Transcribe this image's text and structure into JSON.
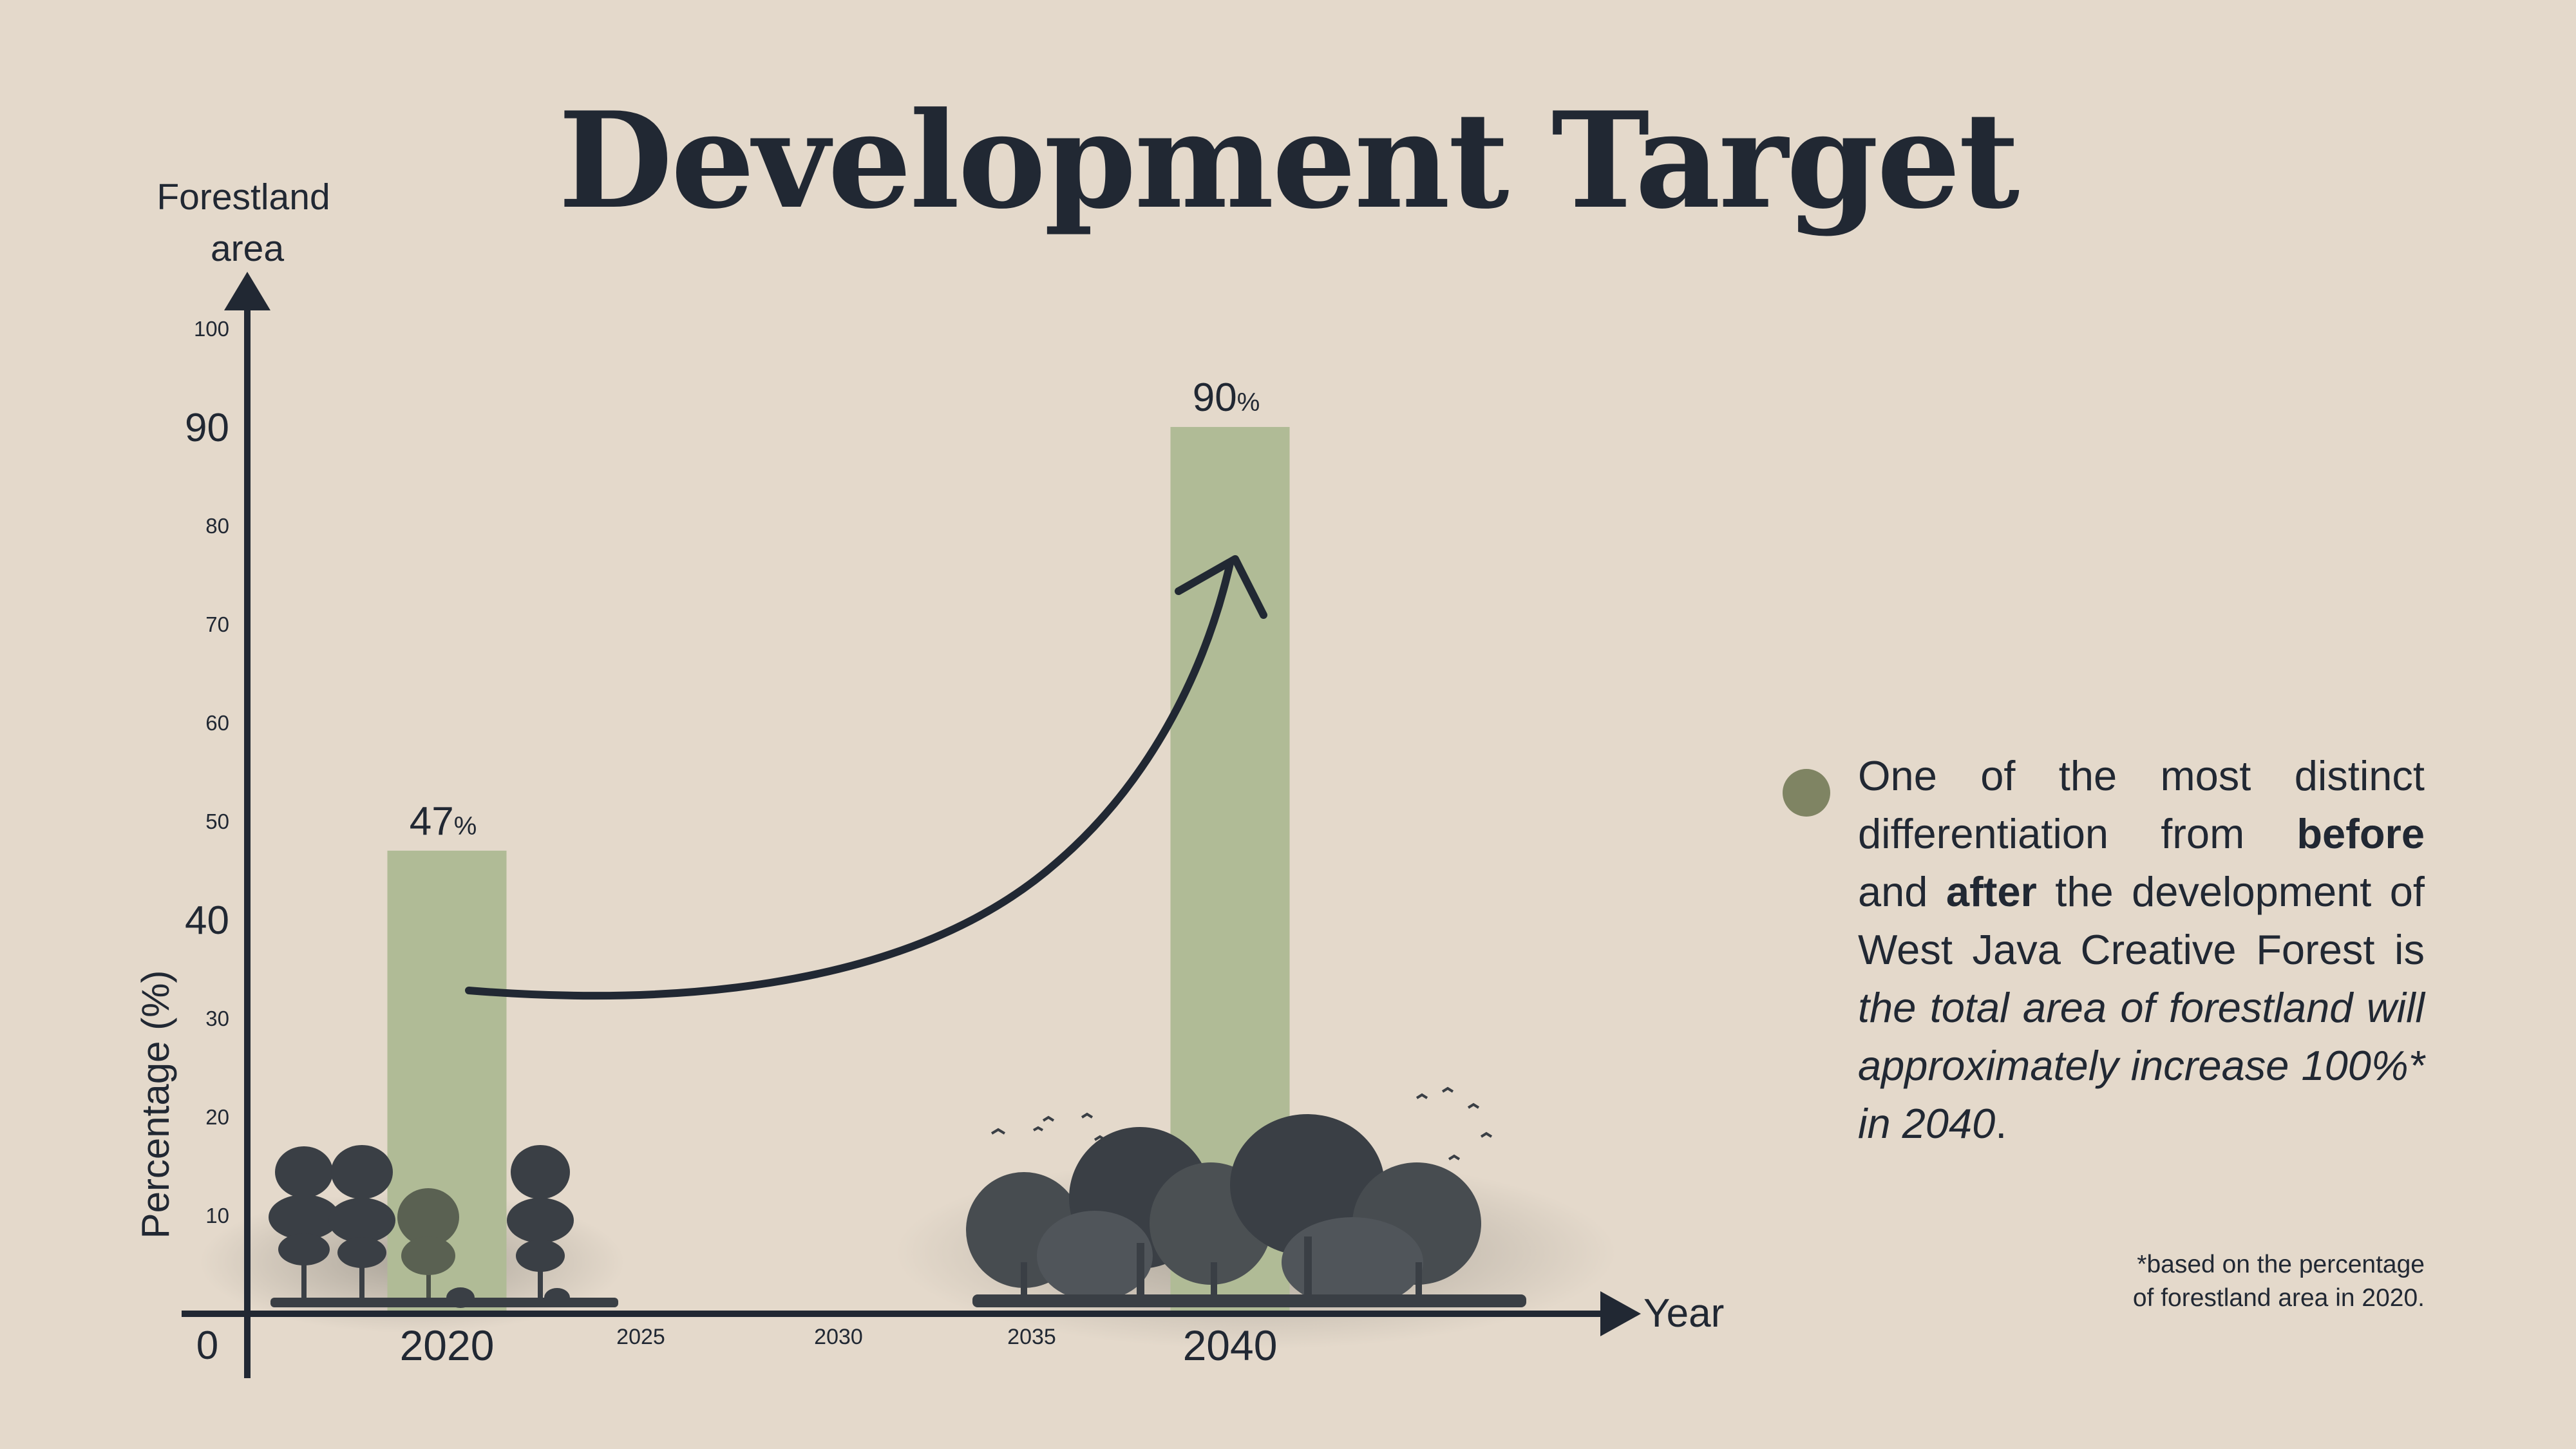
{
  "title": "Development Target",
  "chart_data": {
    "type": "bar",
    "categories": [
      "2020",
      "2040"
    ],
    "values": [
      47,
      90
    ],
    "value_labels": [
      "47",
      "90"
    ],
    "value_unit": "%",
    "ylabel_top": [
      "Forestland",
      "area"
    ],
    "ylabel_side": "Percentage (%)",
    "xlabel": "Year",
    "ylim": [
      0,
      100
    ],
    "y_ticks": [
      {
        "value": 100,
        "label": "100",
        "major": false
      },
      {
        "value": 90,
        "label": "90",
        "major": true
      },
      {
        "value": 80,
        "label": "80",
        "major": false
      },
      {
        "value": 70,
        "label": "70",
        "major": false
      },
      {
        "value": 60,
        "label": "60",
        "major": false
      },
      {
        "value": 50,
        "label": "50",
        "major": false
      },
      {
        "value": 40,
        "label": "40",
        "major": true
      },
      {
        "value": 30,
        "label": "30",
        "major": false
      },
      {
        "value": 20,
        "label": "20",
        "major": false
      },
      {
        "value": 10,
        "label": "10",
        "major": false
      }
    ],
    "origin_label": "0",
    "x_minor_ticks": [
      "2025",
      "2030",
      "2035"
    ],
    "bar_color": "#b0bb96",
    "axis_color": "#212833",
    "grid": false
  },
  "note": {
    "bullet_color": "#7f8463",
    "text_1": "One of the most distinct differentiation from ",
    "bold_1": "before",
    "text_2": " and ",
    "bold_2": "after",
    "text_3": " the development of West Java Creative Forest is ",
    "italic_1": "the total area of forestland will approximately increase 100%* in 2040",
    "text_4": "."
  },
  "footnote": {
    "line1": "*based on the percentage",
    "line2": "of forestland area in 2020."
  }
}
